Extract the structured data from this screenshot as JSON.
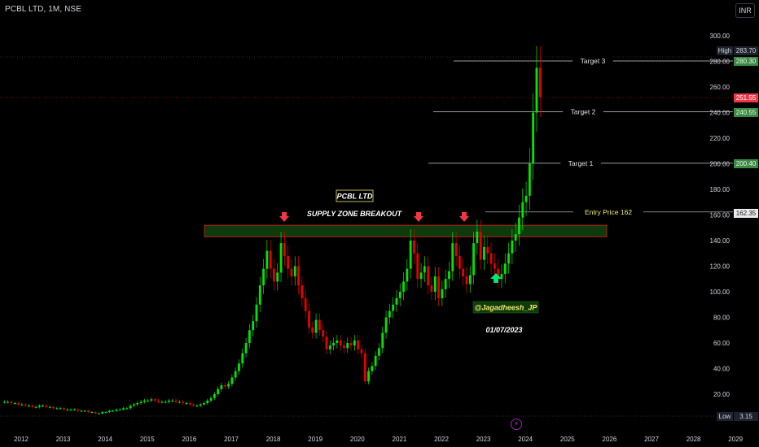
{
  "title": "PCBL LTD, 1M, NSE",
  "currency": "INR",
  "high": {
    "label": "High",
    "value": "283.70"
  },
  "low": {
    "label": "Low",
    "value": "3.15"
  },
  "current_price": "251.55",
  "price_tags": {
    "target3": "280.30",
    "target2": "240.55",
    "target1": "200.40",
    "entry": "162.35"
  },
  "annotations": {
    "stock_name": "PCBL LTD",
    "zone_text": "SUPPLY ZONE BREAKOUT",
    "author": "@Jagadheesh_JP",
    "date": "01/07/2023",
    "target3": "Target 3",
    "target2": "Target 2",
    "target1": "Target 1",
    "entry": "Entry Price 162"
  },
  "colors": {
    "up": "#00e600",
    "down": "#e60000",
    "zone_fill": "#0e3a0c",
    "zone_border": "#e02020",
    "background": "#000000",
    "axis_text": "#d1d4dc"
  },
  "chart_data": {
    "type": "candlestick",
    "interval": "1M",
    "symbol": "PCBL LTD",
    "exchange": "NSE",
    "y_ticks": [
      20,
      40,
      60,
      80,
      100,
      120,
      140,
      160,
      180,
      200,
      220,
      240,
      260,
      280,
      300
    ],
    "y_tick_labels": [
      "20.00",
      "40.00",
      "60.00",
      "80.00",
      "100.00",
      "120.00",
      "140.00",
      "160.00",
      "180.00",
      "200.00",
      "220.00",
      "240.00",
      "260.00",
      "280.00",
      "300.00"
    ],
    "x_ticks": [
      "2012",
      "2013",
      "2014",
      "2015",
      "2016",
      "2017",
      "2018",
      "2019",
      "2020",
      "2021",
      "2022",
      "2023",
      "2024",
      "2025",
      "2026",
      "2027",
      "2028",
      "2029"
    ],
    "ylim": [
      0,
      310
    ],
    "supply_zone": [
      143,
      152
    ],
    "levels": {
      "target3": 280.3,
      "target2": 240.55,
      "target1": 200.4,
      "entry": 162.35,
      "high": 283.7,
      "current": 251.55
    },
    "closes": [
      14,
      14,
      13,
      13,
      12,
      12,
      11,
      11,
      10,
      10,
      11,
      11,
      10,
      10,
      9,
      9,
      9,
      8,
      8,
      8,
      8,
      7,
      7,
      7,
      6,
      6,
      5,
      5,
      6,
      6,
      7,
      7,
      8,
      8,
      9,
      9,
      11,
      12,
      13,
      14,
      15,
      15,
      16,
      15,
      14,
      14,
      14,
      15,
      15,
      14,
      14,
      13,
      13,
      12,
      11,
      11,
      12,
      13,
      15,
      17,
      20,
      24,
      27,
      26,
      28,
      33,
      38,
      44,
      52,
      60,
      70,
      77,
      90,
      105,
      118,
      132,
      118,
      108,
      115,
      138,
      128,
      118,
      112,
      120,
      105,
      95,
      85,
      72,
      68,
      78,
      70,
      65,
      55,
      58,
      60,
      62,
      58,
      56,
      60,
      58,
      62,
      55,
      52,
      30,
      38,
      42,
      50,
      56,
      68,
      80,
      85,
      90,
      95,
      100,
      108,
      118,
      140,
      130,
      110,
      115,
      120,
      105,
      100,
      112,
      95,
      102,
      110,
      116,
      138,
      128,
      118,
      112,
      106,
      113,
      138,
      147,
      125,
      135,
      130,
      122,
      118,
      110,
      114,
      122,
      130,
      140,
      145,
      158,
      170,
      175,
      200,
      240,
      275,
      252
    ]
  }
}
